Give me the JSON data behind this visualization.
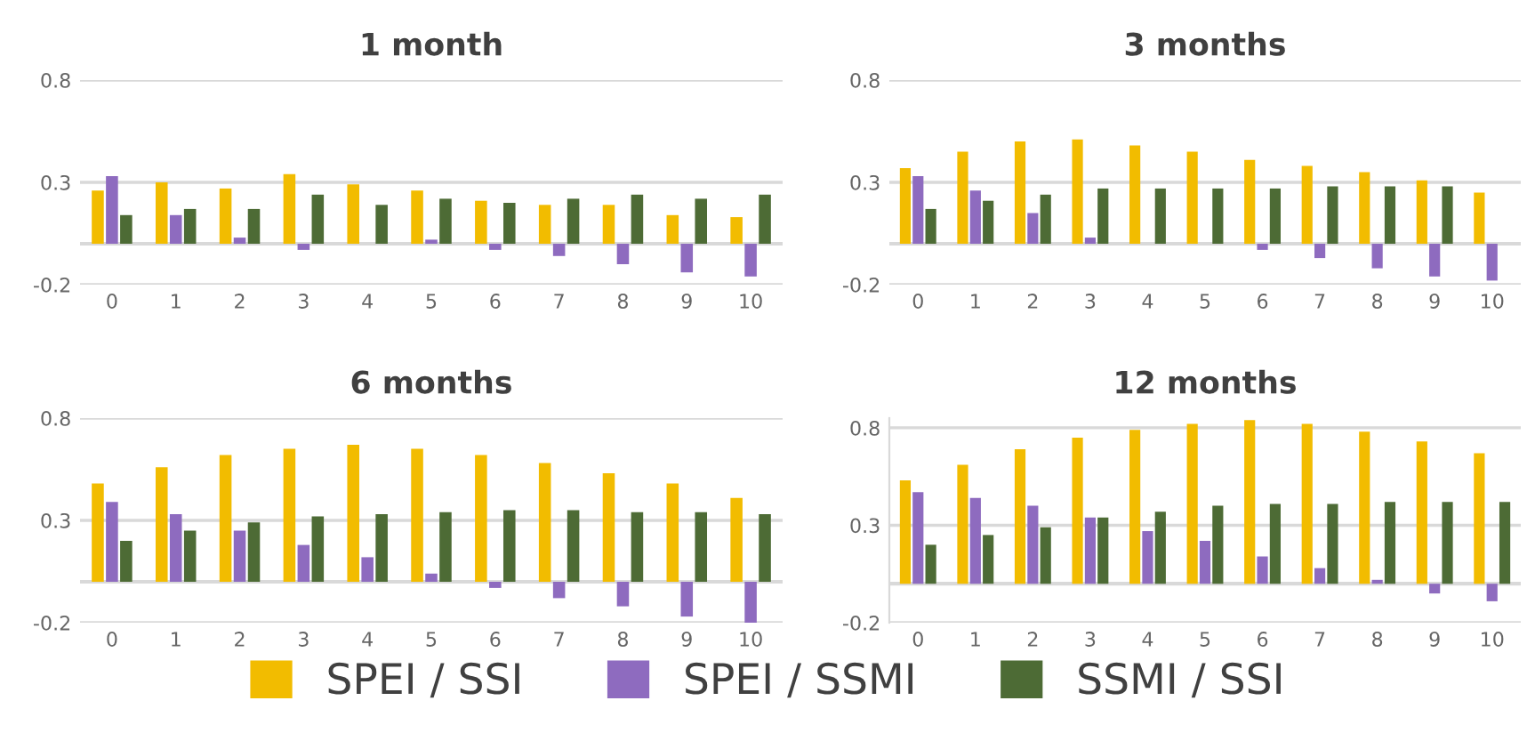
{
  "chart_data": [
    {
      "type": "bar",
      "title": "1 month",
      "categories": [
        "0",
        "1",
        "2",
        "3",
        "4",
        "5",
        "6",
        "7",
        "8",
        "9",
        "10"
      ],
      "ylim": [
        -0.2,
        0.8
      ],
      "yticks": [
        -0.2,
        0.3,
        0.8
      ],
      "grid": "y",
      "legend": "bottom",
      "series": [
        {
          "name": "SPEI / SSI",
          "color": "#f2bc00",
          "values": [
            0.26,
            0.3,
            0.27,
            0.34,
            0.29,
            0.26,
            0.21,
            0.19,
            0.19,
            0.14,
            0.13
          ]
        },
        {
          "name": "SPEI / SSMI",
          "color": "#8e6bbf",
          "values": [
            0.33,
            0.14,
            0.03,
            -0.03,
            0.0,
            0.02,
            -0.03,
            -0.06,
            -0.1,
            -0.14,
            -0.16
          ]
        },
        {
          "name": "SSMI / SSI",
          "color": "#4d6b35",
          "values": [
            0.14,
            0.17,
            0.17,
            0.24,
            0.19,
            0.22,
            0.2,
            0.22,
            0.24,
            0.22,
            0.24
          ]
        }
      ]
    },
    {
      "type": "bar",
      "title": "3 months",
      "categories": [
        "0",
        "1",
        "2",
        "3",
        "4",
        "5",
        "6",
        "7",
        "8",
        "9",
        "10"
      ],
      "ylim": [
        -0.2,
        0.8
      ],
      "yticks": [
        -0.2,
        0.3,
        0.8
      ],
      "grid": "y",
      "legend": "bottom",
      "series": [
        {
          "name": "SPEI / SSI",
          "color": "#f2bc00",
          "values": [
            0.37,
            0.45,
            0.5,
            0.51,
            0.48,
            0.45,
            0.41,
            0.38,
            0.35,
            0.31,
            0.25
          ]
        },
        {
          "name": "SPEI / SSMI",
          "color": "#8e6bbf",
          "values": [
            0.33,
            0.26,
            0.15,
            0.03,
            0.0,
            0.0,
            -0.03,
            -0.07,
            -0.12,
            -0.16,
            -0.18
          ]
        },
        {
          "name": "SSMI / SSI",
          "color": "#4d6b35",
          "values": [
            0.17,
            0.21,
            0.24,
            0.27,
            0.27,
            0.27,
            0.27,
            0.28,
            0.28,
            0.28,
            null
          ]
        }
      ]
    },
    {
      "type": "bar",
      "title": "6 months",
      "categories": [
        "0",
        "1",
        "2",
        "3",
        "4",
        "5",
        "6",
        "7",
        "8",
        "9",
        "10"
      ],
      "ylim": [
        -0.2,
        0.8
      ],
      "yticks": [
        -0.2,
        0.3,
        0.8
      ],
      "grid": "y",
      "legend": "bottom",
      "series": [
        {
          "name": "SPEI / SSI",
          "color": "#f2bc00",
          "values": [
            0.48,
            0.56,
            0.62,
            0.65,
            0.67,
            0.65,
            0.62,
            0.58,
            0.53,
            0.48,
            0.41
          ]
        },
        {
          "name": "SPEI / SSMI",
          "color": "#8e6bbf",
          "values": [
            0.39,
            0.33,
            0.25,
            0.18,
            0.12,
            0.04,
            -0.03,
            -0.08,
            -0.12,
            -0.17,
            -0.2
          ]
        },
        {
          "name": "SSMI / SSI",
          "color": "#4d6b35",
          "values": [
            0.2,
            0.25,
            0.29,
            0.32,
            0.33,
            0.34,
            0.35,
            0.35,
            0.34,
            0.34,
            0.33
          ]
        }
      ]
    },
    {
      "type": "bar",
      "title": "12 months",
      "categories": [
        "0",
        "1",
        "2",
        "3",
        "4",
        "5",
        "6",
        "7",
        "8",
        "9",
        "10"
      ],
      "ylim": [
        -0.2,
        0.85
      ],
      "yticks": [
        -0.2,
        0.3,
        0.8
      ],
      "grid": "y",
      "legend": "bottom",
      "series": [
        {
          "name": "SPEI / SSI",
          "color": "#f2bc00",
          "values": [
            0.53,
            0.61,
            0.69,
            0.75,
            0.79,
            0.82,
            0.84,
            0.82,
            0.78,
            0.73,
            0.67
          ]
        },
        {
          "name": "SPEI / SSMI",
          "color": "#8e6bbf",
          "values": [
            0.47,
            0.44,
            0.4,
            0.34,
            0.27,
            0.22,
            0.14,
            0.08,
            0.02,
            -0.05,
            -0.09
          ]
        },
        {
          "name": "SSMI / SSI",
          "color": "#4d6b35",
          "values": [
            0.2,
            0.25,
            0.29,
            0.34,
            0.37,
            0.4,
            0.41,
            0.41,
            0.42,
            0.42,
            0.42
          ]
        }
      ]
    }
  ]
}
